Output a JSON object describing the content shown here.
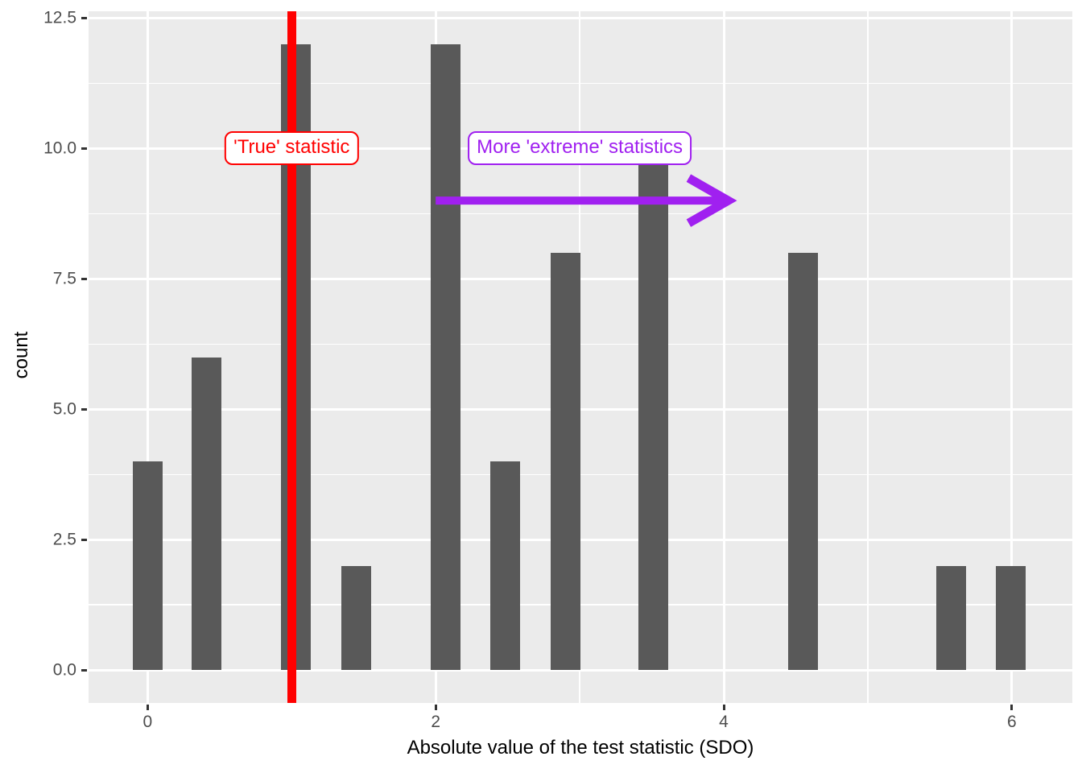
{
  "chart_data": {
    "type": "bar",
    "subtype": "histogram",
    "title": "",
    "xlabel": "Absolute value of the test statistic (SDO)",
    "ylabel": "count",
    "bars": [
      {
        "x": 0.0,
        "count": 4
      },
      {
        "x": 0.41,
        "count": 6
      },
      {
        "x": 1.03,
        "count": 12
      },
      {
        "x": 1.45,
        "count": 2
      },
      {
        "x": 2.07,
        "count": 12
      },
      {
        "x": 2.48,
        "count": 4
      },
      {
        "x": 2.9,
        "count": 8
      },
      {
        "x": 3.51,
        "count": 10
      },
      {
        "x": 4.55,
        "count": 8
      },
      {
        "x": 5.58,
        "count": 2
      },
      {
        "x": 5.99,
        "count": 2
      }
    ],
    "bar_width": 0.207,
    "xlim": [
      -0.41,
      6.42
    ],
    "ylim": [
      -0.63,
      12.63
    ],
    "x_ticks": [
      {
        "value": 0,
        "label": "0"
      },
      {
        "value": 2,
        "label": "2"
      },
      {
        "value": 4,
        "label": "4"
      },
      {
        "value": 6,
        "label": "6"
      }
    ],
    "y_ticks": [
      {
        "value": 0,
        "label": "0.0"
      },
      {
        "value": 2.5,
        "label": "2.5"
      },
      {
        "value": 5,
        "label": "5.0"
      },
      {
        "value": 7.5,
        "label": "7.5"
      },
      {
        "value": 10,
        "label": "10.0"
      },
      {
        "value": 12.5,
        "label": "12.5"
      }
    ],
    "x_minor_gridlines": [
      1,
      3,
      5
    ],
    "y_minor_gridlines": [
      1.25,
      3.75,
      6.25,
      8.75,
      11.25
    ],
    "grid": true,
    "legend": "none",
    "vline": {
      "x": 1,
      "color": "#FF0000"
    },
    "arrow": {
      "from_x": 2,
      "to_x": 4.03,
      "y": 9,
      "color": "#A020F0"
    },
    "annotations": [
      {
        "text": "'True' statistic",
        "x": 1,
        "y": 10,
        "color": "#FF0000"
      },
      {
        "text": "More 'extreme' statistics",
        "x": 3,
        "y": 10,
        "color": "#A020F0"
      }
    ],
    "colors": {
      "bar": "#595959",
      "panel_background": "#EBEBEB",
      "gridline": "#FFFFFF",
      "vline": "#FF0000",
      "arrow": "#A020F0",
      "axis_text": "#4D4D4D",
      "axis_title": "#000000",
      "tick_mark": "#333333",
      "label_background": "#FFFFFF"
    }
  }
}
